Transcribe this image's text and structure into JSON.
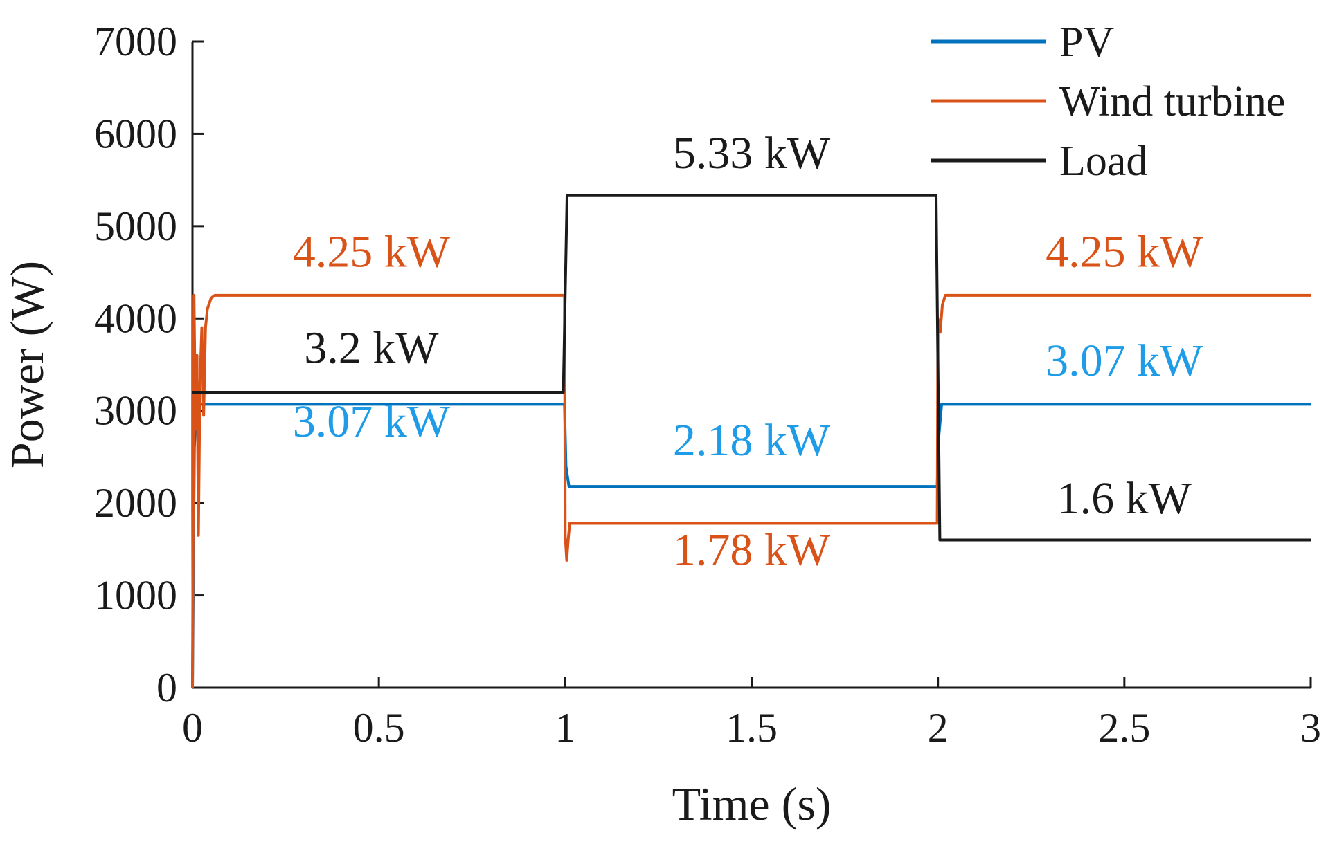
{
  "chart_data": {
    "type": "line",
    "title": "",
    "xlabel": "Time (s)",
    "ylabel": "Power (W)",
    "xlim": [
      0,
      3
    ],
    "ylim": [
      0,
      7000
    ],
    "xticks": [
      0,
      0.5,
      1,
      1.5,
      2,
      2.5,
      3
    ],
    "xtick_labels": [
      "0",
      "0.5",
      "1",
      "1.5",
      "2",
      "2.5",
      "3"
    ],
    "yticks": [
      0,
      1000,
      2000,
      3000,
      4000,
      5000,
      6000,
      7000
    ],
    "ytick_labels": [
      "0",
      "1000",
      "2000",
      "3000",
      "4000",
      "5000",
      "6000",
      "7000"
    ],
    "grid": false,
    "legend_position": "top-right",
    "series": [
      {
        "name": "PV",
        "color": "#0072BD",
        "x": [
          0.0,
          0.005,
          0.01,
          0.02,
          0.998,
          1.002,
          1.01,
          1.998,
          2.002,
          2.01,
          3.0
        ],
        "y": [
          0,
          2600,
          3070,
          3070,
          3070,
          2400,
          2180,
          2180,
          2700,
          3070,
          3070
        ]
      },
      {
        "name": "Wind turbine",
        "color": "#D95319",
        "x": [
          0.0,
          0.004,
          0.008,
          0.012,
          0.016,
          0.02,
          0.025,
          0.03,
          0.035,
          0.04,
          0.05,
          0.06,
          0.998,
          1.0,
          1.004,
          1.008,
          1.012,
          1.02,
          1.998,
          2.0,
          2.006,
          2.012,
          2.02,
          3.0
        ],
        "y": [
          0,
          4250,
          2800,
          3600,
          1650,
          3300,
          3900,
          2950,
          3900,
          4100,
          4220,
          4250,
          4250,
          1650,
          1380,
          1600,
          1780,
          1780,
          1780,
          4000,
          3850,
          4150,
          4250,
          4250
        ]
      },
      {
        "name": "Load",
        "color": "#1a1a1a",
        "x": [
          0.0,
          0.001,
          0.995,
          1.005,
          1.995,
          2.005,
          3.0
        ],
        "y": [
          3200,
          3200,
          3200,
          5330,
          5330,
          1600,
          1600
        ]
      }
    ],
    "annotations": [
      {
        "text": "4.25 kW",
        "x": 0.48,
        "y": 4560,
        "color": "#D95319"
      },
      {
        "text": "3.2 kW",
        "x": 0.48,
        "y": 3520,
        "color": "#1a1a1a"
      },
      {
        "text": "3.07 kW",
        "x": 0.48,
        "y": 2720,
        "color": "#1E9CE8"
      },
      {
        "text": "5.33 kW",
        "x": 1.5,
        "y": 5630,
        "color": "#1a1a1a"
      },
      {
        "text": "2.18 kW",
        "x": 1.5,
        "y": 2520,
        "color": "#1E9CE8"
      },
      {
        "text": "1.78 kW",
        "x": 1.5,
        "y": 1330,
        "color": "#D95319"
      },
      {
        "text": "4.25 kW",
        "x": 2.5,
        "y": 4560,
        "color": "#D95319"
      },
      {
        "text": "3.07 kW",
        "x": 2.5,
        "y": 3380,
        "color": "#1E9CE8"
      },
      {
        "text": "1.6 kW",
        "x": 2.5,
        "y": 1890,
        "color": "#1a1a1a"
      }
    ]
  }
}
